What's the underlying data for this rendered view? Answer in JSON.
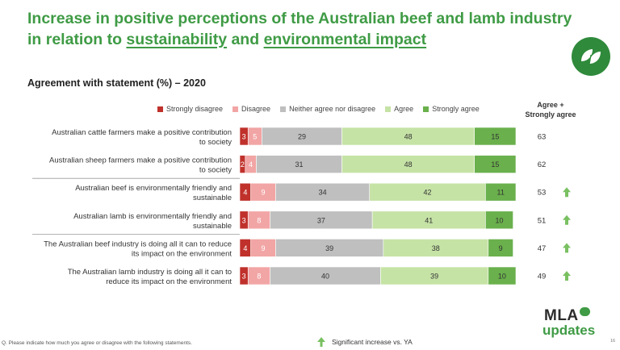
{
  "header": {
    "title_line1": "Increase in positive perceptions of the Australian beef and lamb industry",
    "title_line2_prefix": "in relation to ",
    "title_line2_link1": "sustainability",
    "title_line2_mid": " and ",
    "title_line2_link2": "environmental impact",
    "badge_icon": "leaf-icon"
  },
  "subtitle": "Agreement with statement (%) – 2020",
  "agree_column_header": [
    "Agree +",
    "Strongly agree"
  ],
  "chart_data": {
    "type": "bar",
    "orientation": "horizontal-stacked",
    "categories": [
      [
        "Australian cattle farmers make a positive contribution",
        "to society"
      ],
      [
        "Australian sheep farmers make a positive contribution",
        "to society"
      ],
      [
        "Australian beef is environmentally friendly and",
        "sustainable"
      ],
      [
        "Australian lamb is environmentally friendly and",
        "sustainable"
      ],
      [
        "The Australian beef industry is doing all it can to reduce",
        "its impact on the environment"
      ],
      [
        "The Australian lamb industry is doing all it can to",
        "reduce its impact on the environment"
      ]
    ],
    "series": [
      {
        "name": "Strongly disagree",
        "color": "#c0312b",
        "label_color": "#ffffff",
        "values": [
          3,
          2,
          4,
          3,
          4,
          3
        ]
      },
      {
        "name": "Disagree",
        "color": "#f2a5a5",
        "label_color": "#ffffff",
        "values": [
          5,
          4,
          9,
          8,
          9,
          8
        ]
      },
      {
        "name": "Neither agree nor disagree",
        "color": "#bfbfbf",
        "label_color": "#333333",
        "values": [
          29,
          31,
          34,
          37,
          39,
          40
        ]
      },
      {
        "name": "Agree",
        "color": "#c6e3a6",
        "label_color": "#333333",
        "values": [
          48,
          48,
          42,
          41,
          38,
          39
        ]
      },
      {
        "name": "Strongly agree",
        "color": "#6ab04c",
        "label_color": "#333333",
        "values": [
          15,
          15,
          11,
          10,
          9,
          10
        ]
      }
    ],
    "agree_plus_strongly_agree": [
      63,
      62,
      53,
      51,
      47,
      49
    ],
    "significant_increase": [
      false,
      false,
      true,
      true,
      true,
      true
    ],
    "xlim": [
      0,
      100
    ],
    "legend_position": "top",
    "grid": false
  },
  "significance_legend": "Significant increase vs. YA",
  "footnote": "Q. Please indicate how much you agree or disagree with the following statements.",
  "logo": {
    "line1": "MLA",
    "line2": "updates"
  },
  "page_number": "16",
  "colors": {
    "title_green": "#3f9b45",
    "arrow_green": "#79c061"
  }
}
